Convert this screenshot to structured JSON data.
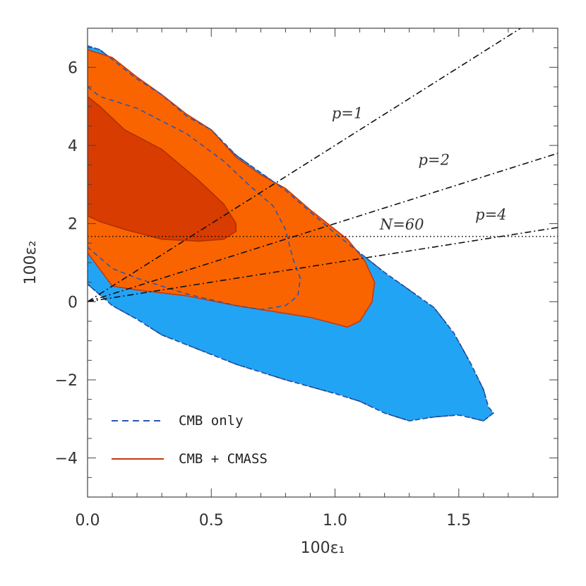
{
  "chart_data": {
    "type": "contour",
    "xlabel": "100ε₁",
    "ylabel": "100ε₂",
    "xlim": [
      0.0,
      1.9
    ],
    "ylim": [
      -5.0,
      7.0
    ],
    "x_ticks": [
      {
        "value": 0.0,
        "label": "0.0"
      },
      {
        "value": 0.5,
        "label": "0.5"
      },
      {
        "value": 1.0,
        "label": "1.0"
      },
      {
        "value": 1.5,
        "label": "1.5"
      }
    ],
    "y_ticks": [
      {
        "value": -4,
        "label": "−4"
      },
      {
        "value": -2,
        "label": "−2"
      },
      {
        "value": 0,
        "label": "0"
      },
      {
        "value": 2,
        "label": "2"
      },
      {
        "value": 4,
        "label": "4"
      },
      {
        "value": 6,
        "label": "6"
      }
    ],
    "colors": {
      "cmb_95": "#22a4f5",
      "cmb_68": "#1a5fd6",
      "cmb_line": "#2857b0",
      "cmass_95": "#f96400",
      "cmass_68": "#d83c00",
      "cmass_line": "#c23a10"
    },
    "regions": [
      {
        "name": "CMB only 95%",
        "fill": "#22a4f5",
        "stroke": "#1a3f80",
        "dashed": true,
        "points": [
          [
            0,
            6.55
          ],
          [
            0.05,
            6.45
          ],
          [
            0.1,
            6.2
          ],
          [
            0.2,
            5.7
          ],
          [
            0.3,
            5.3
          ],
          [
            0.4,
            4.75
          ],
          [
            0.5,
            4.4
          ],
          [
            0.6,
            3.75
          ],
          [
            0.7,
            3.3
          ],
          [
            0.8,
            2.85
          ],
          [
            0.9,
            2.3
          ],
          [
            1.0,
            1.75
          ],
          [
            1.1,
            1.25
          ],
          [
            1.2,
            0.75
          ],
          [
            1.3,
            0.3
          ],
          [
            1.4,
            -0.15
          ],
          [
            1.48,
            -0.8
          ],
          [
            1.55,
            -1.6
          ],
          [
            1.6,
            -2.25
          ],
          [
            1.62,
            -2.7
          ],
          [
            1.64,
            -2.85
          ],
          [
            1.6,
            -3.05
          ],
          [
            1.5,
            -2.9
          ],
          [
            1.4,
            -2.95
          ],
          [
            1.3,
            -3.05
          ],
          [
            1.2,
            -2.85
          ],
          [
            1.1,
            -2.55
          ],
          [
            1.0,
            -2.35
          ],
          [
            0.8,
            -2.0
          ],
          [
            0.6,
            -1.6
          ],
          [
            0.4,
            -1.1
          ],
          [
            0.3,
            -0.85
          ],
          [
            0.2,
            -0.45
          ],
          [
            0.1,
            -0.1
          ],
          [
            0.0,
            0.45
          ]
        ]
      },
      {
        "name": "CMB only 68%",
        "fill": "#1a5fd6",
        "stroke": "#2857b0",
        "dashed": true,
        "points": [
          [
            0,
            5.5
          ],
          [
            0.05,
            5.25
          ],
          [
            0.2,
            4.95
          ],
          [
            0.4,
            4.3
          ],
          [
            0.55,
            3.6
          ],
          [
            0.65,
            3.0
          ],
          [
            0.75,
            2.45
          ],
          [
            0.8,
            1.85
          ],
          [
            0.83,
            1.1
          ],
          [
            0.86,
            0.6
          ],
          [
            0.85,
            0.15
          ],
          [
            0.8,
            -0.1
          ],
          [
            0.7,
            -0.2
          ],
          [
            0.6,
            -0.1
          ],
          [
            0.4,
            0.2
          ],
          [
            0.2,
            0.6
          ],
          [
            0.1,
            0.85
          ],
          [
            0.0,
            1.4
          ]
        ]
      },
      {
        "name": "CMB + CMASS 95%",
        "fill": "#f96400",
        "stroke": "#c23a10",
        "dashed": false,
        "points": [
          [
            0,
            6.45
          ],
          [
            0.1,
            6.25
          ],
          [
            0.2,
            5.75
          ],
          [
            0.3,
            5.3
          ],
          [
            0.4,
            4.8
          ],
          [
            0.5,
            4.4
          ],
          [
            0.6,
            3.7
          ],
          [
            0.7,
            3.25
          ],
          [
            0.8,
            2.9
          ],
          [
            0.9,
            2.35
          ],
          [
            1.0,
            1.85
          ],
          [
            1.05,
            1.6
          ],
          [
            1.12,
            1.05
          ],
          [
            1.16,
            0.5
          ],
          [
            1.15,
            0.0
          ],
          [
            1.1,
            -0.5
          ],
          [
            1.05,
            -0.65
          ],
          [
            0.9,
            -0.4
          ],
          [
            0.8,
            -0.3
          ],
          [
            0.7,
            -0.2
          ],
          [
            0.6,
            -0.1
          ],
          [
            0.4,
            0.15
          ],
          [
            0.2,
            0.3
          ],
          [
            0.1,
            0.4
          ],
          [
            0.0,
            1.25
          ]
        ]
      },
      {
        "name": "CMB + CMASS 68%",
        "fill": "#d83c00",
        "stroke": "#b33000",
        "dashed": false,
        "points": [
          [
            0,
            5.25
          ],
          [
            0.05,
            5.0
          ],
          [
            0.15,
            4.4
          ],
          [
            0.3,
            3.9
          ],
          [
            0.45,
            3.1
          ],
          [
            0.55,
            2.5
          ],
          [
            0.6,
            2.0
          ],
          [
            0.6,
            1.8
          ],
          [
            0.55,
            1.6
          ],
          [
            0.45,
            1.55
          ],
          [
            0.3,
            1.6
          ],
          [
            0.15,
            1.85
          ],
          [
            0.05,
            2.05
          ],
          [
            0.0,
            2.2
          ]
        ]
      }
    ],
    "lines": [
      {
        "label": "p=1",
        "style": "dashdot",
        "points": [
          [
            0,
            0
          ],
          [
            1.75,
            7.0
          ]
        ],
        "label_at": [
          1.05,
          4.7
        ]
      },
      {
        "label": "p=2",
        "style": "dashdot",
        "points": [
          [
            0,
            0
          ],
          [
            1.9,
            3.8
          ]
        ],
        "label_at": [
          1.4,
          3.5
        ]
      },
      {
        "label": "p=4",
        "style": "dashdot",
        "points": [
          [
            0,
            0
          ],
          [
            1.9,
            1.9
          ]
        ],
        "label_at": [
          1.63,
          2.1
        ]
      },
      {
        "label": "N=60",
        "style": "dotted",
        "points": [
          [
            0,
            1.67
          ],
          [
            1.9,
            1.67
          ]
        ],
        "label_at": [
          1.27,
          1.85
        ]
      }
    ],
    "legend": {
      "position": "bottom-left",
      "entries": [
        {
          "label": "CMB only",
          "color": "#2857b0",
          "style": "dashed"
        },
        {
          "label": "CMB + CMASS",
          "color": "#c23a10",
          "style": "solid"
        }
      ]
    }
  }
}
